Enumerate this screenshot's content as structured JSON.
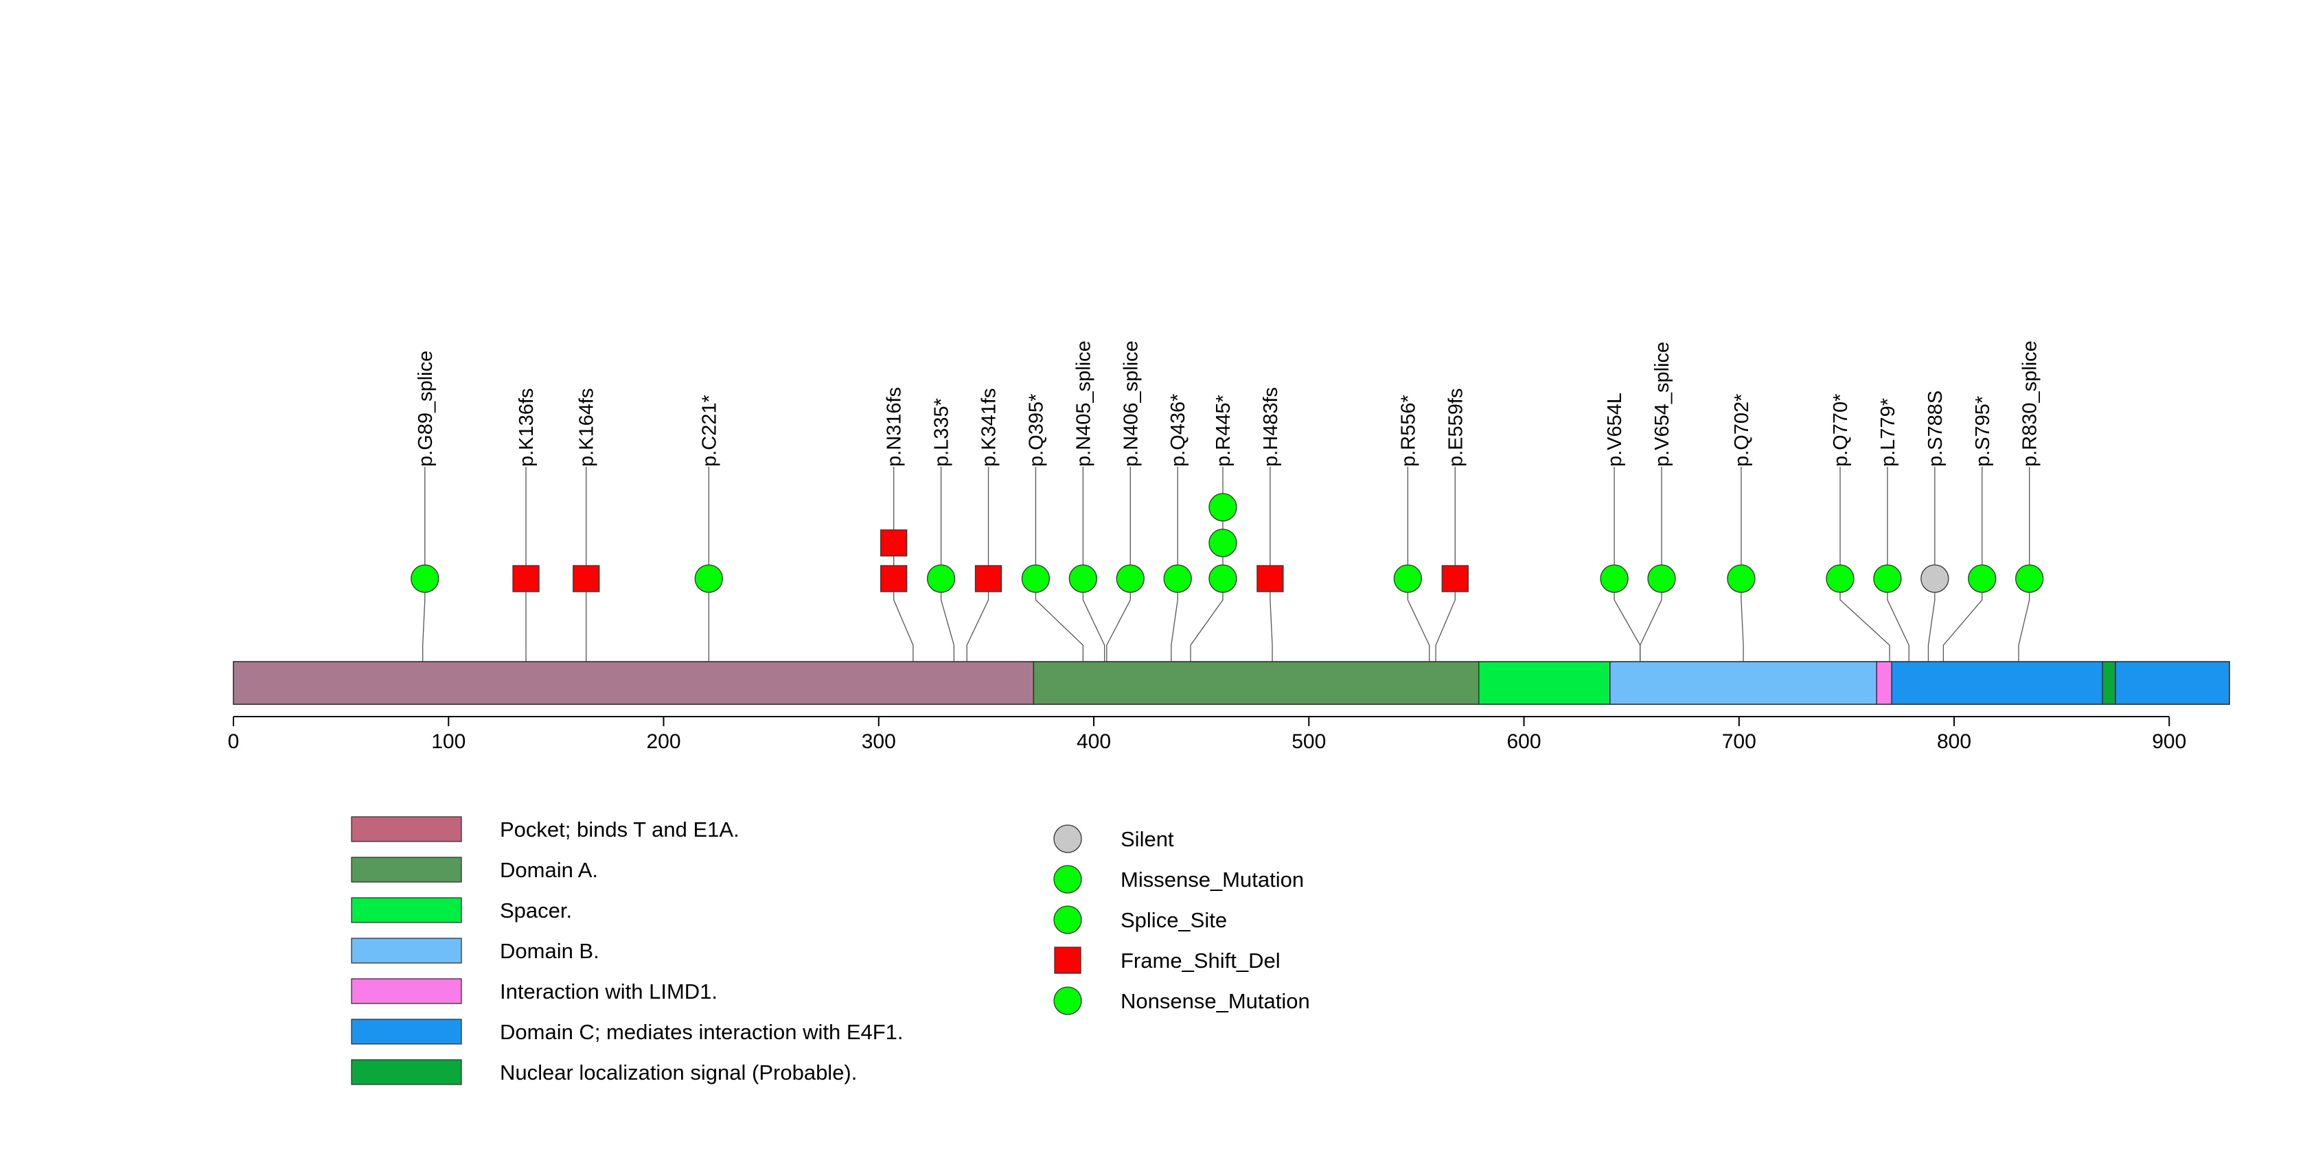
{
  "chart_data": {
    "type": "lollipop",
    "title": "",
    "xlabel": "",
    "ylabel": "",
    "protein_length": 928,
    "xlim": [
      0,
      928
    ],
    "xticks": [
      0,
      100,
      200,
      300,
      400,
      500,
      600,
      700,
      800,
      900
    ],
    "colors": {
      "backbone": "#a8798f",
      "missense": "#00ff00",
      "splice": "#00ff00",
      "frameshift": "#ff0000",
      "silent": "#c8c8c8",
      "nonsense": "#00ff00"
    },
    "domains": [
      {
        "name": "Pocket; binds T and E1A.",
        "start": 0,
        "end": 372,
        "color": "#a8798f",
        "legend_color": "#c0657b"
      },
      {
        "name": "Domain A.",
        "start": 372,
        "end": 579,
        "color": "#5a9959",
        "legend_color": "#57995a"
      },
      {
        "name": "Spacer.",
        "start": 579,
        "end": 640,
        "color": "#00ee44",
        "legend_color": "#00ee44"
      },
      {
        "name": "Domain B.",
        "start": 640,
        "end": 764,
        "color": "#70bef9",
        "legend_color": "#70bef9"
      },
      {
        "name": "Interaction with LIMD1.",
        "start": 764,
        "end": 771,
        "color": "#f97ce9",
        "legend_color": "#f97ce9"
      },
      {
        "name": "Domain C; mediates interaction with E4F1.",
        "start": 771,
        "end": 869,
        "color": "#1a94ee",
        "legend_color": "#1a94ee"
      },
      {
        "name": "Nuclear localization signal (Probable).",
        "start": 869,
        "end": 875,
        "color": "#0aa83a",
        "legend_color": "#0aa83a"
      },
      {
        "name": "Domain C; mediates interaction with E4F1.",
        "start": 875,
        "end": 928,
        "color": "#1a94ee",
        "legend_color": "#1a94ee"
      }
    ],
    "mutations": [
      {
        "label": "p.G89_splice",
        "site": 88,
        "pos": 89,
        "type": "Splice_Site",
        "count": 1
      },
      {
        "label": "p.K136fs",
        "site": 136,
        "pos": 136,
        "type": "Frame_Shift_Del",
        "count": 1
      },
      {
        "label": "p.K164fs",
        "site": 164,
        "pos": 164,
        "type": "Frame_Shift_Del",
        "count": 1
      },
      {
        "label": "p.C221*",
        "site": 221,
        "pos": 221,
        "type": "Nonsense_Mutation",
        "count": 1
      },
      {
        "label": "p.N316fs",
        "site": 316,
        "pos": 307,
        "type": "Frame_Shift_Del",
        "count": 2
      },
      {
        "label": "p.L335*",
        "site": 335,
        "pos": 329,
        "type": "Nonsense_Mutation",
        "count": 1
      },
      {
        "label": "p.K341fs",
        "site": 341,
        "pos": 351,
        "type": "Frame_Shift_Del",
        "count": 1
      },
      {
        "label": "p.Q395*",
        "site": 395,
        "pos": 373,
        "type": "Nonsense_Mutation",
        "count": 1
      },
      {
        "label": "p.N405_splice",
        "site": 405,
        "pos": 395,
        "type": "Splice_Site",
        "count": 1
      },
      {
        "label": "p.N406_splice",
        "site": 406,
        "pos": 417,
        "type": "Splice_Site",
        "count": 1
      },
      {
        "label": "p.Q436*",
        "site": 436,
        "pos": 439,
        "type": "Nonsense_Mutation",
        "count": 1
      },
      {
        "label": "p.R445*",
        "site": 445,
        "pos": 460,
        "type": "Nonsense_Mutation",
        "count": 3
      },
      {
        "label": "p.H483fs",
        "site": 483,
        "pos": 482,
        "type": "Frame_Shift_Del",
        "count": 1
      },
      {
        "label": "p.R556*",
        "site": 556,
        "pos": 546,
        "type": "Nonsense_Mutation",
        "count": 1
      },
      {
        "label": "p.E559fs",
        "site": 559,
        "pos": 568,
        "type": "Frame_Shift_Del",
        "count": 1
      },
      {
        "label": "p.V654L",
        "site": 654,
        "pos": 642,
        "type": "Missense_Mutation",
        "count": 1
      },
      {
        "label": "p.V654_splice",
        "site": 654,
        "pos": 664,
        "type": "Splice_Site",
        "count": 1
      },
      {
        "label": "p.Q702*",
        "site": 702,
        "pos": 701,
        "type": "Nonsense_Mutation",
        "count": 1
      },
      {
        "label": "p.Q770*",
        "site": 770,
        "pos": 747,
        "type": "Nonsense_Mutation",
        "count": 1
      },
      {
        "label": "p.L779*",
        "site": 779,
        "pos": 769,
        "type": "Nonsense_Mutation",
        "count": 1
      },
      {
        "label": "p.S788S",
        "site": 788,
        "pos": 791,
        "type": "Silent",
        "count": 1
      },
      {
        "label": "p.S795*",
        "site": 795,
        "pos": 813,
        "type": "Nonsense_Mutation",
        "count": 1
      },
      {
        "label": "p.R830_splice",
        "site": 830,
        "pos": 835,
        "type": "Splice_Site",
        "count": 1
      }
    ],
    "legend": {
      "domains": [
        {
          "label": "Pocket; binds T and E1A.",
          "color": "#c0657b"
        },
        {
          "label": "Domain A.",
          "color": "#57995a"
        },
        {
          "label": "Spacer.",
          "color": "#00ee44"
        },
        {
          "label": "Domain B.",
          "color": "#70bef9"
        },
        {
          "label": "Interaction with LIMD1.",
          "color": "#f97ce9"
        },
        {
          "label": "Domain C; mediates interaction with E4F1.",
          "color": "#1a94ee"
        },
        {
          "label": "Nuclear localization signal (Probable).",
          "color": "#0aa83a"
        }
      ],
      "mutations": [
        {
          "label": "Silent",
          "shape": "circle",
          "color": "#c8c8c8"
        },
        {
          "label": "Missense_Mutation",
          "shape": "circle",
          "color": "#00ff00"
        },
        {
          "label": "Splice_Site",
          "shape": "circle",
          "color": "#00ff00"
        },
        {
          "label": "Frame_Shift_Del",
          "shape": "square",
          "color": "#ff0000"
        },
        {
          "label": "Nonsense_Mutation",
          "shape": "circle",
          "color": "#00ff00"
        }
      ]
    }
  }
}
